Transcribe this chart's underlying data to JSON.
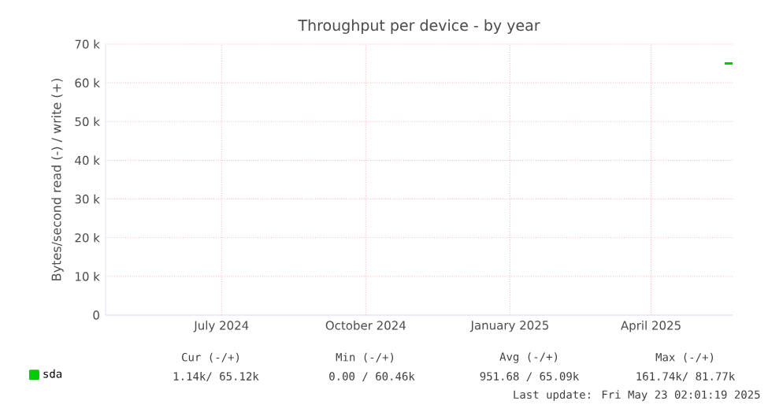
{
  "chart_data": {
    "type": "line",
    "title": "Throughput per device - by year",
    "ylabel": "Bytes/second read (-) / write (+)",
    "xlim": [
      "2024-04-18",
      "2025-05-23"
    ],
    "xticks": [
      {
        "value": "2024-07-01",
        "label": "July 2024"
      },
      {
        "value": "2024-10-01",
        "label": "October 2024"
      },
      {
        "value": "2025-01-01",
        "label": "January 2025"
      },
      {
        "value": "2025-04-01",
        "label": "April 2025"
      }
    ],
    "ylim": [
      0,
      70000
    ],
    "yticks": [
      0,
      {
        "value": 10000,
        "label": "10 k"
      },
      {
        "value": 20000,
        "label": "20 k"
      },
      {
        "value": 30000,
        "label": "30 k"
      },
      {
        "value": 40000,
        "label": "40 k"
      },
      {
        "value": 50000,
        "label": "50 k"
      },
      {
        "value": 60000,
        "label": "60 k"
      },
      {
        "value": 70000,
        "label": "70 k"
      }
    ],
    "series": [
      {
        "name": "sda",
        "color": "#00cc00",
        "x": [
          "2025-05-18",
          "2025-05-23"
        ],
        "values": [
          65000,
          65000
        ]
      }
    ],
    "grid": true,
    "legend": "bottom left",
    "annotations": [
      "Cur (-/+)",
      "Min (-/+)",
      "Avg (-/+)",
      "Max (-/+)",
      "1.14k/ 65.12k",
      "0.00 / 60.46k",
      "951.68 / 65.09k",
      "161.74k/ 81.77k",
      "Last update: Fri May 23 02:01:19 2025"
    ]
  }
}
